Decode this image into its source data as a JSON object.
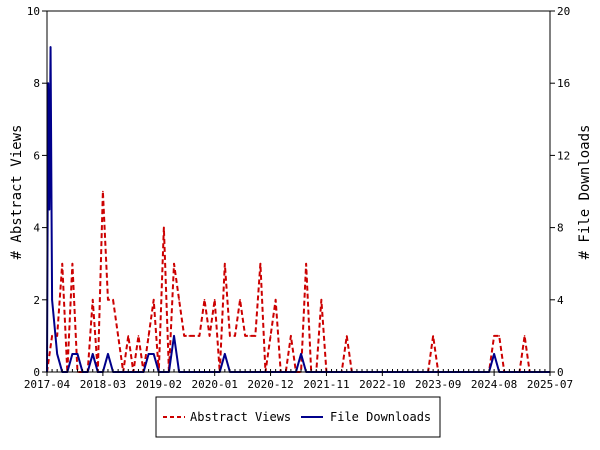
{
  "chart_data": {
    "type": "line",
    "y_left_label": "# Abstract Views",
    "y_right_label": "# File Downloads",
    "y_left_range": [
      0,
      10
    ],
    "y_right_range": [
      0,
      20
    ],
    "y_left_ticks": [
      0,
      2,
      4,
      6,
      8,
      10
    ],
    "y_right_ticks": [
      0,
      4,
      8,
      12,
      16,
      20
    ],
    "x_range": [
      "2017-04",
      "2025-07"
    ],
    "x_ticks": [
      "2017-04",
      "2018-03",
      "2019-02",
      "2020-01",
      "2020-12",
      "2021-11",
      "2022-10",
      "2023-09",
      "2024-08",
      "2025-07"
    ],
    "legend_position": "bottom",
    "series": [
      {
        "name": "Abstract Views",
        "axis": "left",
        "color": "#cc0000",
        "dash": true,
        "points": [
          [
            "2017-04",
            0
          ],
          [
            "2017-05",
            1
          ],
          [
            "2017-06",
            1
          ],
          [
            "2017-07",
            3
          ],
          [
            "2017-08",
            0
          ],
          [
            "2017-09",
            3
          ],
          [
            "2017-10",
            0
          ],
          [
            "2017-11",
            0
          ],
          [
            "2017-12",
            0
          ],
          [
            "2018-01",
            2
          ],
          [
            "2018-02",
            0
          ],
          [
            "2018-03",
            5
          ],
          [
            "2018-04",
            2
          ],
          [
            "2018-05",
            2
          ],
          [
            "2018-06",
            1
          ],
          [
            "2018-07",
            0
          ],
          [
            "2018-08",
            1
          ],
          [
            "2018-09",
            0
          ],
          [
            "2018-10",
            1
          ],
          [
            "2018-11",
            0
          ],
          [
            "2018-12",
            1
          ],
          [
            "2019-01",
            2
          ],
          [
            "2019-02",
            0
          ],
          [
            "2019-03",
            4
          ],
          [
            "2019-04",
            0
          ],
          [
            "2019-05",
            3
          ],
          [
            "2019-06",
            2
          ],
          [
            "2019-07",
            1
          ],
          [
            "2019-08",
            1
          ],
          [
            "2019-09",
            1
          ],
          [
            "2019-10",
            1
          ],
          [
            "2019-11",
            2
          ],
          [
            "2019-12",
            1
          ],
          [
            "2020-01",
            2
          ],
          [
            "2020-02",
            0
          ],
          [
            "2020-03",
            3
          ],
          [
            "2020-04",
            1
          ],
          [
            "2020-05",
            1
          ],
          [
            "2020-06",
            2
          ],
          [
            "2020-07",
            1
          ],
          [
            "2020-08",
            1
          ],
          [
            "2020-09",
            1
          ],
          [
            "2020-10",
            3
          ],
          [
            "2020-11",
            0
          ],
          [
            "2020-12",
            1
          ],
          [
            "2021-01",
            2
          ],
          [
            "2021-02",
            0
          ],
          [
            "2021-03",
            0
          ],
          [
            "2021-04",
            1
          ],
          [
            "2021-05",
            0
          ],
          [
            "2021-06",
            0
          ],
          [
            "2021-07",
            3
          ],
          [
            "2021-08",
            0
          ],
          [
            "2021-09",
            0
          ],
          [
            "2021-10",
            2
          ],
          [
            "2021-11",
            0
          ],
          [
            "2022-02",
            0
          ],
          [
            "2022-03",
            1
          ],
          [
            "2022-04",
            0
          ],
          [
            "2023-07",
            0
          ],
          [
            "2023-08",
            1
          ],
          [
            "2023-09",
            0
          ],
          [
            "2024-07",
            0
          ],
          [
            "2024-08",
            1
          ],
          [
            "2024-09",
            1
          ],
          [
            "2024-10",
            0
          ],
          [
            "2025-01",
            0
          ],
          [
            "2025-02",
            1
          ],
          [
            "2025-03",
            0
          ],
          [
            "2025-07",
            0
          ]
        ]
      },
      {
        "name": "File Downloads",
        "axis": "right",
        "color": "#00008b",
        "dash": false,
        "points": [
          [
            "2017-04",
            0
          ],
          [
            "2017-04-08",
            16
          ],
          [
            "2017-04-15",
            9
          ],
          [
            "2017-04-22",
            18
          ],
          [
            "2017-05",
            4
          ],
          [
            "2017-06",
            1
          ],
          [
            "2017-07",
            0
          ],
          [
            "2017-08",
            0
          ],
          [
            "2017-09",
            1
          ],
          [
            "2017-10",
            1
          ],
          [
            "2017-11",
            0
          ],
          [
            "2017-12",
            0
          ],
          [
            "2018-01",
            1
          ],
          [
            "2018-02",
            0
          ],
          [
            "2018-03",
            0
          ],
          [
            "2018-04",
            1
          ],
          [
            "2018-05",
            0
          ],
          [
            "2018-06",
            0
          ],
          [
            "2018-07",
            0
          ],
          [
            "2018-08",
            0
          ],
          [
            "2018-09",
            0
          ],
          [
            "2018-10",
            0
          ],
          [
            "2018-11",
            0
          ],
          [
            "2018-12",
            1
          ],
          [
            "2019-01",
            1
          ],
          [
            "2019-02",
            0
          ],
          [
            "2019-03",
            0
          ],
          [
            "2019-04",
            0
          ],
          [
            "2019-05",
            2
          ],
          [
            "2019-06",
            0
          ],
          [
            "2019-07",
            0
          ],
          [
            "2019-08",
            0
          ],
          [
            "2019-09",
            0
          ],
          [
            "2019-10",
            0
          ],
          [
            "2019-11",
            0
          ],
          [
            "2019-12",
            0
          ],
          [
            "2020-01",
            0
          ],
          [
            "2020-02",
            0
          ],
          [
            "2020-03",
            1
          ],
          [
            "2020-04",
            0
          ],
          [
            "2021-05",
            0
          ],
          [
            "2021-06",
            1
          ],
          [
            "2021-07",
            0
          ],
          [
            "2024-07",
            0
          ],
          [
            "2024-08",
            1
          ],
          [
            "2024-09",
            0
          ],
          [
            "2025-07",
            0
          ]
        ]
      }
    ]
  }
}
